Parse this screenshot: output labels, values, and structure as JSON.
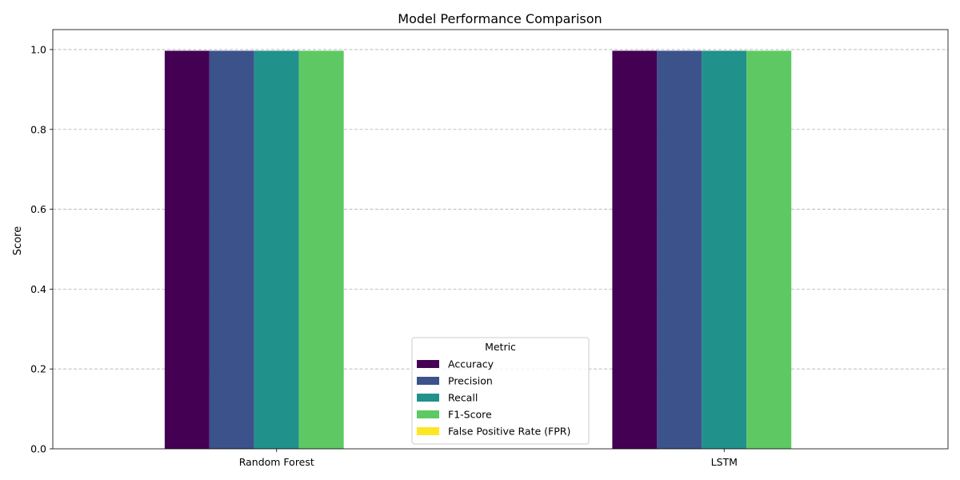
{
  "chart_data": {
    "type": "bar",
    "title": "Model Performance Comparison",
    "xlabel": "",
    "ylabel": "Score",
    "categories": [
      "Random Forest",
      "LSTM"
    ],
    "series": [
      {
        "name": "Accuracy",
        "color": "#440154",
        "values": [
          0.997,
          0.997
        ]
      },
      {
        "name": "Precision",
        "color": "#3b528b",
        "values": [
          0.997,
          0.997
        ]
      },
      {
        "name": "Recall",
        "color": "#21918c",
        "values": [
          0.997,
          0.997
        ]
      },
      {
        "name": "F1-Score",
        "color": "#5ec962",
        "values": [
          0.997,
          0.997
        ]
      },
      {
        "name": "False Positive Rate (FPR)",
        "color": "#fde725",
        "values": [
          0.0,
          0.0
        ]
      }
    ],
    "ylim": [
      0,
      1.05
    ],
    "yticks": [
      "0.0",
      "0.2",
      "0.4",
      "0.6",
      "0.8",
      "1.0"
    ],
    "grid": "y dashed",
    "legend": {
      "title": "Metric",
      "placement": "lower center"
    }
  }
}
